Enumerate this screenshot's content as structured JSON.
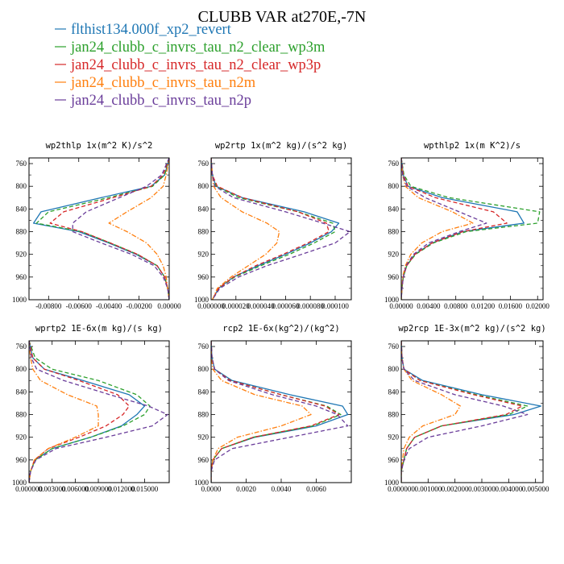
{
  "figure": {
    "title": "CLUBB VAR at270E,-7N"
  },
  "legend": [
    {
      "name": "flthist134.000f_xp2_revert",
      "color": "#1f77b4",
      "dash": "solid"
    },
    {
      "name": "jan24_clubb_c_invrs_tau_n2_clear_wp3m",
      "color": "#2ca02c",
      "dash": "dashed"
    },
    {
      "name": "jan24_clubb_c_invrs_tau_n2_clear_wp3p",
      "color": "#d62728",
      "dash": "dashed"
    },
    {
      "name": "jan24_clubb_c_invrs_tau_n2m",
      "color": "#ff7f0e",
      "dash": "dashdot"
    },
    {
      "name": "jan24_clubb_c_invrs_tau_n2p",
      "color": "#6a3d9a",
      "dash": "dashed"
    }
  ],
  "chart_data": [
    {
      "type": "line",
      "title": "wp2thlp  1x(m^2 K)/s^2",
      "xlim": [
        -0.0093,
        0.0
      ],
      "ylim": [
        1000,
        750
      ],
      "y_inverted": true,
      "xticks": [
        "-0.00800",
        "-0.00600",
        "-0.00400",
        "-0.00200",
        "0.00000"
      ],
      "xtick_values": [
        -0.008,
        -0.006,
        -0.004,
        -0.002,
        0.0
      ],
      "yticks": [
        760,
        800,
        840,
        880,
        920,
        960,
        1000
      ],
      "y": [
        750,
        780,
        800,
        820,
        845,
        865,
        880,
        900,
        920,
        940,
        960,
        980,
        1000
      ],
      "series": [
        {
          "name": "flthist134.000f_xp2_revert",
          "x": [
            0,
            -0.0003,
            -0.0012,
            -0.0045,
            -0.0085,
            -0.009,
            -0.006,
            -0.004,
            -0.0022,
            -0.0008,
            -0.0003,
            -0.0001,
            0
          ]
        },
        {
          "name": "jan24_clubb_c_invrs_tau_n2_clear_wp3m",
          "x": [
            0,
            -0.0003,
            -0.0011,
            -0.004,
            -0.008,
            -0.0088,
            -0.0058,
            -0.0039,
            -0.0021,
            -0.0008,
            -0.0003,
            -0.0001,
            0
          ]
        },
        {
          "name": "jan24_clubb_c_invrs_tau_n2_clear_wp3p",
          "x": [
            0,
            -0.0004,
            -0.0012,
            -0.0037,
            -0.007,
            -0.0079,
            -0.0058,
            -0.0039,
            -0.0021,
            -0.0008,
            -0.0003,
            -0.0001,
            0
          ]
        },
        {
          "name": "jan24_clubb_c_invrs_tau_n2m",
          "x": [
            0,
            -0.0002,
            -0.0004,
            -0.0012,
            -0.0028,
            -0.004,
            -0.0028,
            -0.0015,
            -0.0008,
            -0.0004,
            -0.0002,
            -0.0001,
            0
          ]
        },
        {
          "name": "jan24_clubb_c_invrs_tau_n2p",
          "x": [
            0,
            -0.0005,
            -0.0015,
            -0.0033,
            -0.0055,
            -0.0064,
            -0.0064,
            -0.0045,
            -0.0025,
            -0.001,
            -0.0004,
            -0.0001,
            0
          ]
        }
      ]
    },
    {
      "type": "line",
      "title": "wp2rtp  1x(m^2 kg)/(s^2 kg)",
      "xlim": [
        0.0,
        0.000113
      ],
      "ylim": [
        1000,
        750
      ],
      "y_inverted": true,
      "xticks": [
        "0.000000",
        "0.000020",
        "0.000040",
        "0.000060",
        "0.000080",
        "0.000100"
      ],
      "xtick_values": [
        0.0,
        2e-05,
        4e-05,
        6e-05,
        8e-05,
        0.0001
      ],
      "yticks": [
        760,
        800,
        840,
        880,
        920,
        960,
        1000
      ],
      "y": [
        750,
        780,
        800,
        820,
        845,
        865,
        880,
        900,
        920,
        940,
        960,
        980,
        1000
      ],
      "series": [
        {
          "name": "flthist134.000f_xp2_revert",
          "x": [
            0,
            1e-06,
            4e-06,
            2.5e-05,
            7.5e-05,
            0.000103,
            9.7e-05,
            8e-05,
            6e-05,
            3.8e-05,
            1.8e-05,
            6e-06,
            1e-06
          ]
        },
        {
          "name": "jan24_clubb_c_invrs_tau_n2_clear_wp3m",
          "x": [
            0,
            1e-06,
            4e-06,
            2.2e-05,
            7e-05,
            9.8e-05,
            0.0001,
            8.3e-05,
            6.3e-05,
            4e-05,
            1.9e-05,
            6e-06,
            1e-06
          ]
        },
        {
          "name": "jan24_clubb_c_invrs_tau_n2_clear_wp3p",
          "x": [
            0,
            1e-06,
            5e-06,
            2.5e-05,
            7e-05,
            9.3e-05,
            9.5e-05,
            7.8e-05,
            5.8e-05,
            3.6e-05,
            1.8e-05,
            6e-06,
            1e-06
          ]
        },
        {
          "name": "jan24_clubb_c_invrs_tau_n2m",
          "x": [
            0,
            1e-06,
            2e-06,
            8e-06,
            2.5e-05,
            4.5e-05,
            5.5e-05,
            5.3e-05,
            4.4e-05,
            3e-05,
            1.6e-05,
            5e-06,
            1e-06
          ]
        },
        {
          "name": "jan24_clubb_c_invrs_tau_n2p",
          "x": [
            0,
            1e-06,
            3e-06,
            1.8e-05,
            6e-05,
            9e-05,
            0.000112,
            0.0001,
            7.3e-05,
            4.5e-05,
            2.2e-05,
            7e-06,
            1e-06
          ]
        }
      ]
    },
    {
      "type": "line",
      "title": "wpthlp2  1x(m K^2)/s",
      "xlim": [
        0.0,
        0.0208
      ],
      "ylim": [
        1000,
        750
      ],
      "y_inverted": true,
      "xticks": [
        "0.00000",
        "0.00400",
        "0.00800",
        "0.01200",
        "0.01600",
        "0.02000"
      ],
      "xtick_values": [
        0.0,
        0.004,
        0.008,
        0.012,
        0.016,
        0.02
      ],
      "yticks": [
        760,
        800,
        840,
        880,
        920,
        960,
        1000
      ],
      "y": [
        750,
        780,
        800,
        820,
        845,
        865,
        880,
        900,
        920,
        940,
        960,
        980,
        1000
      ],
      "series": [
        {
          "name": "flthist134.000f_xp2_revert",
          "x": [
            0,
            0.0003,
            0.001,
            0.006,
            0.017,
            0.018,
            0.009,
            0.0045,
            0.002,
            0.0008,
            0.0003,
            0.0001,
            0
          ]
        },
        {
          "name": "jan24_clubb_c_invrs_tau_n2_clear_wp3m",
          "x": [
            0,
            0.0004,
            0.0014,
            0.007,
            0.0203,
            0.02,
            0.0095,
            0.0047,
            0.0021,
            0.0008,
            0.0003,
            0.0001,
            0
          ]
        },
        {
          "name": "jan24_clubb_c_invrs_tau_n2_clear_wp3p",
          "x": [
            0,
            0.0003,
            0.001,
            0.005,
            0.0135,
            0.0155,
            0.009,
            0.0045,
            0.002,
            0.0008,
            0.0003,
            0.0001,
            0
          ]
        },
        {
          "name": "jan24_clubb_c_invrs_tau_n2m",
          "x": [
            0,
            0.0002,
            0.0006,
            0.0025,
            0.0075,
            0.0105,
            0.006,
            0.003,
            0.0014,
            0.0006,
            0.0002,
            0.0001,
            0
          ]
        },
        {
          "name": "jan24_clubb_c_invrs_tau_n2p",
          "x": [
            0,
            0.0002,
            0.0008,
            0.0035,
            0.0085,
            0.0125,
            0.0085,
            0.004,
            0.0018,
            0.0007,
            0.0003,
            0.0001,
            0
          ]
        }
      ]
    },
    {
      "type": "line",
      "title": "wprtp2  1E-6x(m kg)/(s kg)",
      "xlim": [
        0.0,
        0.0182
      ],
      "ylim": [
        1000,
        750
      ],
      "y_inverted": true,
      "xticks": [
        "0.000000",
        "0.003000",
        "0.006000",
        "0.009000",
        "0.012000",
        "0.015000"
      ],
      "xtick_values": [
        0.0,
        0.003,
        0.006,
        0.009,
        0.012,
        0.015
      ],
      "yticks": [
        760,
        800,
        840,
        880,
        920,
        960,
        1000
      ],
      "y": [
        750,
        780,
        800,
        820,
        845,
        865,
        880,
        900,
        920,
        940,
        960,
        980,
        1000
      ],
      "series": [
        {
          "name": "flthist134.000f_xp2_revert",
          "x": [
            0,
            0.0005,
            0.002,
            0.007,
            0.013,
            0.015,
            0.014,
            0.012,
            0.008,
            0.003,
            0.0008,
            0.0002,
            0
          ]
        },
        {
          "name": "jan24_clubb_c_invrs_tau_n2_clear_wp3m",
          "x": [
            0,
            0.0008,
            0.003,
            0.009,
            0.014,
            0.0157,
            0.015,
            0.0122,
            0.008,
            0.003,
            0.0008,
            0.0002,
            0
          ]
        },
        {
          "name": "jan24_clubb_c_invrs_tau_n2_clear_wp3p",
          "x": [
            0,
            0.0005,
            0.002,
            0.0065,
            0.0115,
            0.013,
            0.0122,
            0.01,
            0.0065,
            0.0025,
            0.0007,
            0.0002,
            0
          ]
        },
        {
          "name": "jan24_clubb_c_invrs_tau_n2m",
          "x": [
            0,
            0.0002,
            0.0005,
            0.0015,
            0.005,
            0.0088,
            0.009,
            0.009,
            0.006,
            0.0025,
            0.0007,
            0.0002,
            0
          ]
        },
        {
          "name": "jan24_clubb_c_invrs_tau_n2p",
          "x": [
            0,
            0.0003,
            0.001,
            0.0045,
            0.0105,
            0.0155,
            0.018,
            0.016,
            0.01,
            0.0035,
            0.0009,
            0.0002,
            0
          ]
        }
      ]
    },
    {
      "type": "line",
      "title": "rcp2  1E-6x(kg^2)/(kg^2)",
      "xlim": [
        0.0,
        0.008
      ],
      "ylim": [
        1000,
        750
      ],
      "y_inverted": true,
      "xticks": [
        "0.0000",
        "0.0020",
        "0.0040",
        "0.0060"
      ],
      "xtick_values": [
        0.0,
        0.002,
        0.004,
        0.006
      ],
      "yticks": [
        760,
        800,
        840,
        880,
        920,
        960,
        1000
      ],
      "y": [
        750,
        780,
        800,
        820,
        845,
        865,
        880,
        900,
        920,
        940,
        960,
        980,
        1000
      ],
      "series": [
        {
          "name": "flthist134.000f_xp2_revert",
          "x": [
            0,
            5e-05,
            0.0002,
            0.0012,
            0.0045,
            0.0075,
            0.0078,
            0.006,
            0.0025,
            0.0006,
            0.0001,
            0,
            0
          ]
        },
        {
          "name": "jan24_clubb_c_invrs_tau_n2_clear_wp3m",
          "x": [
            0,
            5e-05,
            0.0002,
            0.0011,
            0.004,
            0.0066,
            0.0074,
            0.0058,
            0.0024,
            0.0006,
            0.0001,
            0,
            0
          ]
        },
        {
          "name": "jan24_clubb_c_invrs_tau_n2_clear_wp3p",
          "x": [
            0,
            5e-05,
            0.0002,
            0.0011,
            0.004,
            0.0065,
            0.0073,
            0.0057,
            0.0024,
            0.0006,
            0.0001,
            0,
            0
          ]
        },
        {
          "name": "jan24_clubb_c_invrs_tau_n2m",
          "x": [
            0,
            2e-05,
            0.0001,
            0.0006,
            0.0025,
            0.0052,
            0.0057,
            0.004,
            0.0015,
            0.0004,
            0.0001,
            0,
            0
          ]
        },
        {
          "name": "jan24_clubb_c_invrs_tau_n2p",
          "x": [
            0,
            5e-05,
            0.0002,
            0.001,
            0.0035,
            0.006,
            0.0072,
            0.0078,
            0.0045,
            0.0012,
            0.0002,
            0,
            0
          ]
        }
      ]
    },
    {
      "type": "line",
      "title": "wp2rcp  1E-3x(m^2 kg)/(s^2 kg)",
      "xlim": [
        0.0,
        0.00528
      ],
      "ylim": [
        1000,
        750
      ],
      "y_inverted": true,
      "xticks": [
        "0.000000",
        "0.001000",
        "0.002000",
        "0.003000",
        "0.004000",
        "0.005000"
      ],
      "xtick_values": [
        0.0,
        0.001,
        0.002,
        0.003,
        0.004,
        0.005
      ],
      "yticks": [
        760,
        800,
        840,
        880,
        920,
        960,
        1000
      ],
      "y": [
        750,
        780,
        800,
        820,
        845,
        865,
        880,
        900,
        920,
        940,
        960,
        980,
        1000
      ],
      "series": [
        {
          "name": "flthist134.000f_xp2_revert",
          "x": [
            0,
            3e-05,
            0.0001,
            0.0008,
            0.003,
            0.0052,
            0.0042,
            0.0015,
            0.0005,
            0.0002,
            0.0001,
            0,
            0
          ]
        },
        {
          "name": "jan24_clubb_c_invrs_tau_n2_clear_wp3m",
          "x": [
            0,
            3e-05,
            0.0001,
            0.0007,
            0.0028,
            0.0047,
            0.004,
            0.0015,
            0.0005,
            0.0002,
            0.0001,
            0,
            0
          ]
        },
        {
          "name": "jan24_clubb_c_invrs_tau_n2_clear_wp3p",
          "x": [
            0,
            3e-05,
            0.0001,
            0.0007,
            0.0027,
            0.0045,
            0.0039,
            0.0015,
            0.0005,
            0.0002,
            0.0001,
            0,
            0
          ]
        },
        {
          "name": "jan24_clubb_c_invrs_tau_n2m",
          "x": [
            0,
            2e-05,
            0.0001,
            0.0004,
            0.0015,
            0.0022,
            0.002,
            0.0008,
            0.0003,
            0.0001,
            5e-05,
            0,
            0
          ]
        },
        {
          "name": "jan24_clubb_c_invrs_tau_n2p",
          "x": [
            0,
            2e-05,
            0.0001,
            0.0005,
            0.002,
            0.0038,
            0.0047,
            0.003,
            0.001,
            0.0003,
            0.0001,
            0,
            0
          ]
        }
      ]
    }
  ]
}
